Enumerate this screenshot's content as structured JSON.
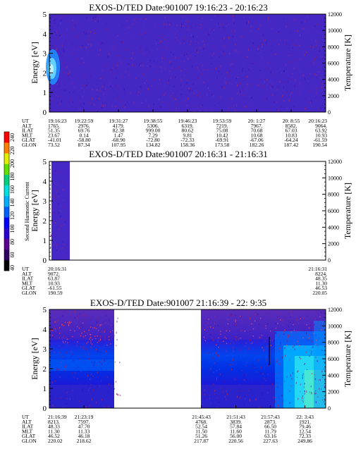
{
  "chart_data": [
    {
      "type": "heatmap",
      "title": "EXOS-D/TED   Date:901007   19:16:23 - 20:16:23",
      "ylabel": "Energy [eV]",
      "y2label": "Temperature [K]",
      "ylim": [
        0,
        5
      ],
      "yticks": [
        "0",
        "1",
        "2",
        "3",
        "4",
        "5"
      ],
      "y2lim": [
        0,
        12000
      ],
      "y2ticks": [
        "0",
        "2000",
        "4000",
        "6000",
        "8000",
        "10000",
        "12000"
      ],
      "x_span": [
        0,
        1
      ],
      "coverage": [
        [
          0,
          1
        ]
      ],
      "table": {
        "labels": [
          "UT",
          "ALT",
          "ILAT",
          "MLT",
          "GLAT",
          "GLON"
        ],
        "positions": [
          0,
          0.125,
          0.25,
          0.375,
          0.5,
          0.625,
          0.75,
          0.875,
          1
        ],
        "columns": [
          [
            "19:16:23",
            "1765.",
            "51.35",
            "23.67",
            "-41.01",
            "73.52"
          ],
          [
            "19:22:59",
            "2976.",
            "69.76",
            "0.14",
            "-58.80",
            "87.34"
          ],
          [
            "19:31:27",
            "4179.",
            "82.38",
            "1.47",
            "-68.90",
            "107.95"
          ],
          [
            "19:38:55",
            "5306.",
            "999.00",
            "7.29",
            "-72.80",
            "134.82"
          ],
          [
            "19:46:23",
            "6319.",
            "80.62",
            "9.81",
            "-72.33",
            "158.36"
          ],
          [
            "19:53:59",
            "7219.",
            "75.08",
            "10.42",
            "-69.91",
            "173.58"
          ],
          [
            "20: 1:27",
            "7967.",
            "70.68",
            "10.68",
            "-67.06",
            "182.26"
          ],
          [
            "20: 8:55",
            "8582.",
            "67.03",
            "10.83",
            "-64.24",
            "187.42"
          ],
          [
            "20:16:23",
            "9064.",
            "63.92",
            "10.93",
            "-61.59",
            "190.54"
          ]
        ]
      }
    },
    {
      "type": "heatmap",
      "title": "EXOS-D/TED   Date:901007   20:16:31 - 21:16:31",
      "ylabel": "Energy [eV]",
      "y2label": "Temperature [K]",
      "ylim": [
        0,
        5
      ],
      "yticks": [
        "0",
        "1",
        "2",
        "3",
        "4",
        "5"
      ],
      "y2lim": [
        0,
        12000
      ],
      "y2ticks": [
        "0",
        "2000",
        "4000",
        "6000",
        "8000",
        "10000",
        "12000"
      ],
      "x_span": [
        0,
        1
      ],
      "coverage": [
        [
          0,
          0.06
        ]
      ],
      "table": {
        "labels": [
          "UT",
          "ALT",
          "ILAT",
          "MLT",
          "GLAT",
          "GLON"
        ],
        "positions": [
          0,
          1
        ],
        "columns": [
          [
            "20:16:31",
            "9072.",
            "63.87",
            "10.93",
            "-61.55",
            "190.59"
          ],
          [
            "21:16:31",
            "8224.",
            "48.35",
            "11.30",
            "46.53",
            "220.05"
          ]
        ]
      }
    },
    {
      "type": "heatmap",
      "title": "EXOS-D/TED   Date:901007   21:16:39 - 22: 9:35",
      "ylabel": "Energy [eV]",
      "y2label": "Temperature [K]",
      "ylim": [
        0,
        5
      ],
      "yticks": [
        "0",
        "1",
        "2",
        "3",
        "4",
        "5"
      ],
      "y2lim": [
        0,
        12000
      ],
      "y2ticks": [
        "0",
        "2000",
        "4000",
        "6000",
        "8000",
        "10000",
        "12000"
      ],
      "x_span": [
        0,
        1
      ],
      "coverage": [
        [
          0,
          0.26
        ],
        [
          0.55,
          1
        ]
      ],
      "table": {
        "labels": [
          "UT",
          "ALT",
          "ILAT",
          "MLT",
          "GLAT",
          "GLON"
        ],
        "positions": [
          0,
          0.125,
          0.55,
          0.675,
          0.8,
          0.925
        ],
        "columns": [
          [
            "21:16:39",
            "8213.",
            "48.33",
            "11.30",
            "46.52",
            "220.02"
          ],
          [
            "21:23:19",
            "7597.",
            "47.70",
            "11.33",
            "46.18",
            "218.62"
          ],
          [
            "21:45:43",
            "4768.",
            "52.54",
            "11.50",
            "51.26",
            "217.87"
          ],
          [
            "21:51:43",
            "3839.",
            "57.84",
            "11.60",
            "56.00",
            "220.56"
          ],
          [
            "21:57:43",
            "2873.",
            "66.50",
            "11.79",
            "63.16",
            "227.63"
          ],
          [
            "22: 3:43",
            "1921.",
            "79.46",
            "12.54",
            "72.33",
            "249.86"
          ]
        ]
      }
    }
  ],
  "colorbar": {
    "label": "Second Harmonic Current",
    "ticks": [
      "40",
      "60",
      "80",
      "100",
      "120",
      "140",
      "160",
      "180",
      "200",
      "220",
      "240"
    ],
    "colors": [
      "#000000",
      "#300060",
      "#5a0090",
      "#2a00d0",
      "#0000ff",
      "#0060ff",
      "#00b0ff",
      "#00e0e0",
      "#00d080",
      "#60e000",
      "#e0f000",
      "#ff8000",
      "#ff0000"
    ]
  }
}
